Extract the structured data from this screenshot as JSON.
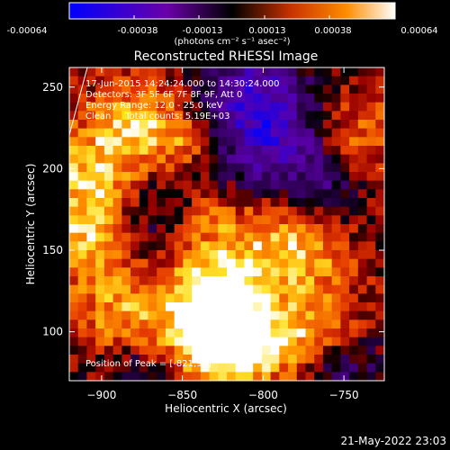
{
  "colorbar": {
    "ticks": [
      "-0.00064",
      "-0.00038",
      "-0.00013",
      "0.00013",
      "0.00038",
      "0.00064"
    ],
    "unit_label": "(photons cm⁻² s⁻¹ asec⁻²)",
    "colors": [
      "#0000ff",
      "#6a00a8",
      "#000000",
      "#c83200",
      "#ff8c00",
      "#ffffff"
    ]
  },
  "chart_data": {
    "type": "heatmap",
    "title": "Reconstructed RHESSI Image",
    "xlabel": "Heliocentric X (arcsec)",
    "ylabel": "Heliocentric Y (arcsec)",
    "xlim": [
      -920,
      -725
    ],
    "ylim": [
      70,
      262
    ],
    "x_ticks": [
      -900,
      -850,
      -800,
      -750
    ],
    "y_ticks": [
      100,
      150,
      200,
      250
    ],
    "annotations": [
      "17-Jun-2015 14:24:24.000 to 14:30:24.000",
      "Detectors: 3F 5F 6F 7F 8F 9F, Att 0",
      "Energy Range: 12.0 - 25.0 keV",
      "Clean     Total counts: 5.19E+03"
    ],
    "peak_label": "Position of Peak = [-821,95]",
    "peak": [
      -821,
      95
    ],
    "grid_cells": [
      36,
      36
    ]
  },
  "footer": {
    "timestamp": "21-May-2022 23:03"
  }
}
